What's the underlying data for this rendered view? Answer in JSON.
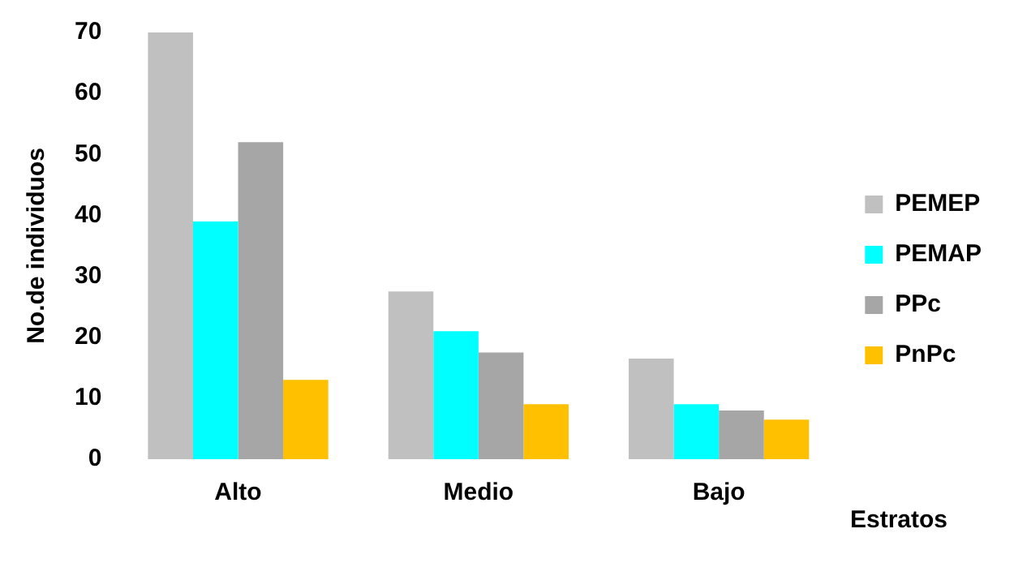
{
  "chart_data": {
    "type": "bar",
    "ylabel": "No.de individuos",
    "xlabel": "Estratos",
    "categories": [
      "Alto",
      "Medio",
      "Bajo"
    ],
    "series": [
      {
        "name": "PEMEP",
        "color": "#c0c0c0",
        "values": [
          70,
          27.5,
          16.5
        ]
      },
      {
        "name": "PEMAP",
        "color": "#00ffff",
        "values": [
          39,
          21,
          9
        ]
      },
      {
        "name": "PPc",
        "color": "#a6a6a6",
        "values": [
          52,
          17.5,
          8
        ]
      },
      {
        "name": "PnPc",
        "color": "#ffc000",
        "values": [
          13,
          9,
          6.5
        ]
      }
    ],
    "ylim": [
      0,
      70
    ],
    "yticks": [
      0,
      10,
      20,
      30,
      40,
      50,
      60,
      70
    ],
    "grid": false,
    "legend": "right"
  }
}
